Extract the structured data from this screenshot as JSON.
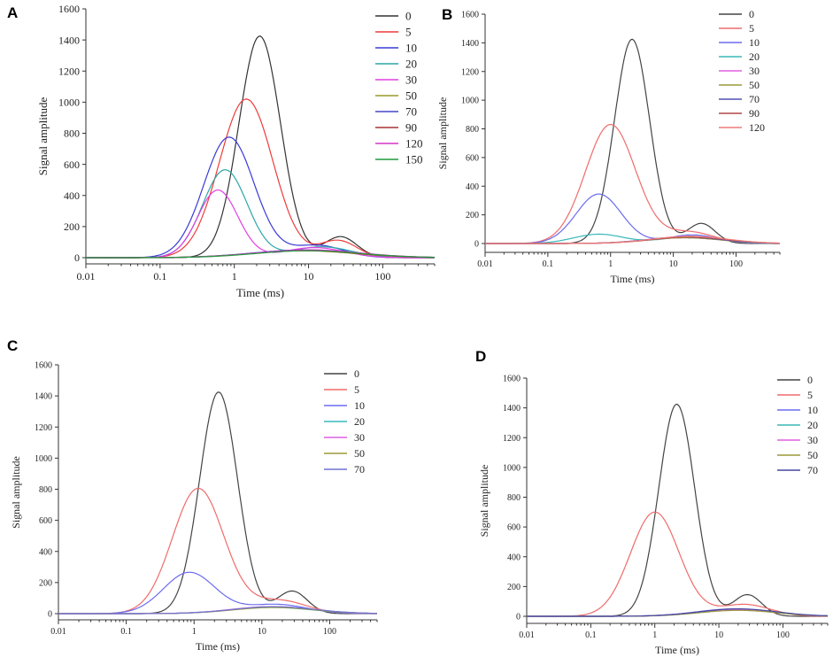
{
  "chart_data": [
    {
      "panel": "A",
      "type": "line",
      "xscale": "log",
      "xlim": [
        0.01,
        500
      ],
      "ylim": [
        -60,
        1600
      ],
      "yticks": [
        0,
        200,
        400,
        600,
        800,
        1000,
        1200,
        1400,
        1600
      ],
      "xticks": [
        0.01,
        0.1,
        1,
        10,
        100
      ],
      "xtick_labels": [
        "0.01",
        "0.1",
        "1",
        "10",
        "100"
      ],
      "xlabel": "Time (ms)",
      "ylabel": "Signal amplitude",
      "series": [
        {
          "name": "0",
          "color": "#333333",
          "peaks": [
            [
              2.2,
              1425,
              0.28
            ],
            [
              27,
              135,
              0.22
            ]
          ]
        },
        {
          "name": "5",
          "color": "#ee3b3b",
          "peaks": [
            [
              1.45,
              1020,
              0.36
            ],
            [
              25,
              110,
              0.25
            ]
          ]
        },
        {
          "name": "10",
          "color": "#3a3ad6",
          "peaks": [
            [
              0.85,
              775,
              0.34
            ],
            [
              13,
              80,
              0.35
            ]
          ]
        },
        {
          "name": "20",
          "color": "#2aa6a6",
          "peaks": [
            [
              0.75,
              565,
              0.3
            ],
            [
              15,
              70,
              0.4
            ]
          ]
        },
        {
          "name": "30",
          "color": "#e23ee2",
          "peaks": [
            [
              0.6,
              435,
              0.27
            ],
            [
              12,
              65,
              0.4
            ]
          ]
        },
        {
          "name": "50",
          "color": "#9a9a2a",
          "peaks": [
            [
              8,
              45,
              0.7
            ]
          ]
        },
        {
          "name": "70",
          "color": "#4646c8",
          "peaks": [
            [
              9,
              50,
              0.7
            ]
          ]
        },
        {
          "name": "90",
          "color": "#a83232",
          "peaks": [
            [
              9,
              45,
              0.7
            ]
          ]
        },
        {
          "name": "120",
          "color": "#d633c8",
          "peaks": [
            [
              10,
              50,
              0.7
            ]
          ]
        },
        {
          "name": "150",
          "color": "#1f9a3c",
          "peaks": [
            [
              10,
              45,
              0.7
            ]
          ]
        }
      ]
    },
    {
      "panel": "B",
      "type": "line",
      "xscale": "log",
      "xlim": [
        0.01,
        500
      ],
      "ylim": [
        -60,
        1600
      ],
      "yticks": [
        0,
        200,
        400,
        600,
        800,
        1000,
        1200,
        1400,
        1600
      ],
      "xticks": [
        0.01,
        0.1,
        1,
        10,
        100
      ],
      "xtick_labels": [
        "0.01",
        "0.1",
        "1",
        "10",
        "100"
      ],
      "xlabel": "Time (ms)",
      "ylabel": "Signal amplitude",
      "series": [
        {
          "name": "0",
          "color": "#444444",
          "peaks": [
            [
              2.2,
              1425,
              0.28
            ],
            [
              28,
              140,
              0.22
            ]
          ]
        },
        {
          "name": "5",
          "color": "#f06b6b",
          "peaks": [
            [
              1.0,
              830,
              0.4
            ],
            [
              18,
              80,
              0.4
            ]
          ]
        },
        {
          "name": "10",
          "color": "#6b6bf0",
          "peaks": [
            [
              0.65,
              345,
              0.36
            ],
            [
              20,
              60,
              0.4
            ]
          ]
        },
        {
          "name": "20",
          "color": "#3ab8b8",
          "peaks": [
            [
              0.65,
              65,
              0.4
            ],
            [
              20,
              50,
              0.45
            ]
          ]
        },
        {
          "name": "30",
          "color": "#e25ee2",
          "peaks": [
            [
              15,
              40,
              0.6
            ]
          ]
        },
        {
          "name": "50",
          "color": "#9a9a3a",
          "peaks": [
            [
              15,
              40,
              0.6
            ]
          ]
        },
        {
          "name": "70",
          "color": "#5050b4",
          "peaks": [
            [
              15,
              45,
              0.6
            ]
          ]
        },
        {
          "name": "90",
          "color": "#b44646",
          "peaks": [
            [
              18,
              45,
              0.6
            ]
          ]
        },
        {
          "name": "120",
          "color": "#f07a7a",
          "peaks": [
            [
              18,
              50,
              0.6
            ]
          ]
        }
      ]
    },
    {
      "panel": "C",
      "type": "line",
      "xscale": "log",
      "xlim": [
        0.01,
        500
      ],
      "ylim": [
        -60,
        1600
      ],
      "yticks": [
        0,
        200,
        400,
        600,
        800,
        1000,
        1200,
        1400,
        1600
      ],
      "xticks": [
        0.01,
        0.1,
        1,
        10,
        100
      ],
      "xtick_labels": [
        "0.01",
        "0.1",
        "1",
        "10",
        "100"
      ],
      "xlabel": "Time (ms)",
      "ylabel": "Signal amplitude",
      "series": [
        {
          "name": "0",
          "color": "#444444",
          "peaks": [
            [
              2.3,
              1425,
              0.28
            ],
            [
              28,
              145,
              0.22
            ]
          ]
        },
        {
          "name": "5",
          "color": "#f06b6b",
          "peaks": [
            [
              1.15,
              805,
              0.38
            ],
            [
              18,
              85,
              0.4
            ]
          ]
        },
        {
          "name": "10",
          "color": "#6b6bf0",
          "peaks": [
            [
              0.85,
              265,
              0.38
            ],
            [
              16,
              60,
              0.45
            ]
          ]
        },
        {
          "name": "20",
          "color": "#3ab8b8",
          "peaks": [
            [
              14,
              40,
              0.6
            ]
          ]
        },
        {
          "name": "30",
          "color": "#e25ee2",
          "peaks": [
            [
              14,
              45,
              0.6
            ]
          ]
        },
        {
          "name": "50",
          "color": "#9a9a3a",
          "peaks": [
            [
              15,
              40,
              0.6
            ]
          ]
        },
        {
          "name": "70",
          "color": "#7070d0",
          "peaks": [
            [
              15,
              45,
              0.6
            ]
          ]
        }
      ]
    },
    {
      "panel": "D",
      "type": "line",
      "xscale": "log",
      "xlim": [
        0.01,
        500
      ],
      "ylim": [
        -60,
        1600
      ],
      "yticks": [
        0,
        200,
        400,
        600,
        800,
        1000,
        1200,
        1400,
        1600
      ],
      "xticks": [
        0.01,
        0.1,
        1,
        10,
        100
      ],
      "xtick_labels": [
        "0.01",
        "0.1",
        "1",
        "10",
        "100"
      ],
      "xlabel": "Time (ms)",
      "ylabel": "Signal amplitude",
      "series": [
        {
          "name": "0",
          "color": "#444444",
          "peaks": [
            [
              2.2,
              1425,
              0.28
            ],
            [
              28,
              145,
              0.22
            ]
          ]
        },
        {
          "name": "5",
          "color": "#f06b6b",
          "peaks": [
            [
              1.0,
              700,
              0.38
            ],
            [
              25,
              80,
              0.4
            ]
          ]
        },
        {
          "name": "10",
          "color": "#6b6bf0",
          "peaks": [
            [
              18,
              50,
              0.6
            ]
          ]
        },
        {
          "name": "20",
          "color": "#3ab8b8",
          "peaks": [
            [
              18,
              45,
              0.6
            ]
          ]
        },
        {
          "name": "30",
          "color": "#e25ee2",
          "peaks": [
            [
              18,
              45,
              0.6
            ]
          ]
        },
        {
          "name": "50",
          "color": "#9a9a3a",
          "peaks": [
            [
              20,
              40,
              0.6
            ]
          ]
        },
        {
          "name": "70",
          "color": "#4646a0",
          "peaks": [
            [
              20,
              50,
              0.6
            ]
          ]
        }
      ]
    }
  ]
}
